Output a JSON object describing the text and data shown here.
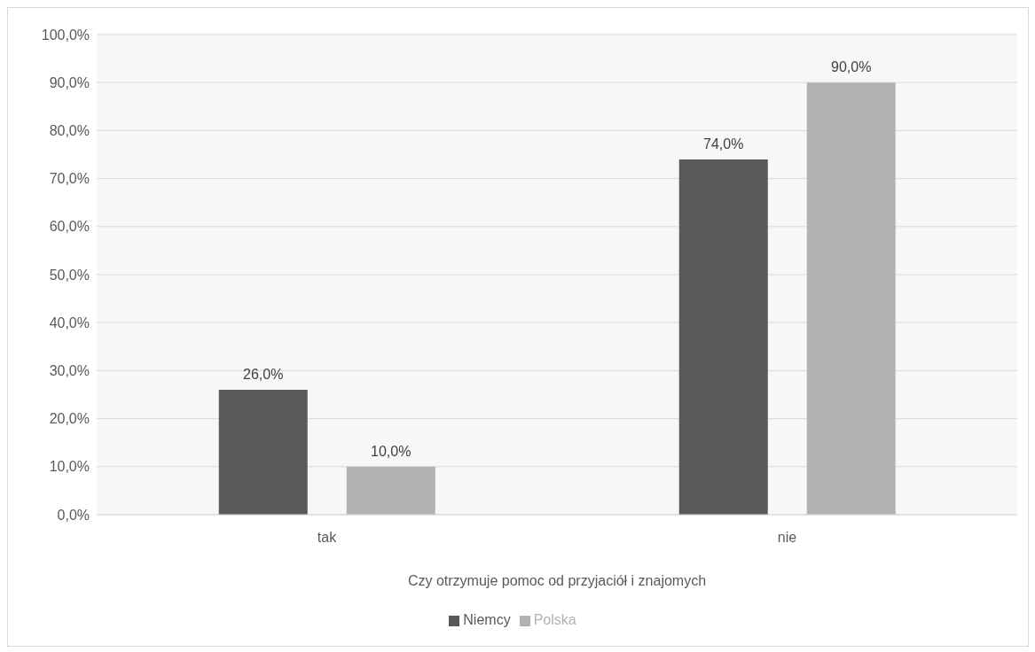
{
  "chart_data": {
    "type": "bar",
    "xlabel": "Czy otrzymuje pomoc od przyjaciół i znajomych",
    "categories": [
      "tak",
      "nie"
    ],
    "series": [
      {
        "name": "Niemcy",
        "color": "#595959",
        "values": [
          26,
          74
        ],
        "value_labels": [
          "26,0%",
          "74,0%"
        ]
      },
      {
        "name": "Polska",
        "color": "#b2b2b2",
        "values": [
          10,
          90
        ],
        "value_labels": [
          "10,0%",
          "90,0%"
        ]
      }
    ],
    "ylim": [
      0,
      100
    ],
    "yticks": [
      {
        "value": 0,
        "label": "0,0%"
      },
      {
        "value": 10,
        "label": "10,0%"
      },
      {
        "value": 20,
        "label": "20,0%"
      },
      {
        "value": 30,
        "label": "30,0%"
      },
      {
        "value": 40,
        "label": "40,0%"
      },
      {
        "value": 50,
        "label": "50,0%"
      },
      {
        "value": 60,
        "label": "60,0%"
      },
      {
        "value": 70,
        "label": "70,0%"
      },
      {
        "value": 80,
        "label": "80,0%"
      },
      {
        "value": 90,
        "label": "90,0%"
      },
      {
        "value": 100,
        "label": "100,0%"
      }
    ],
    "grid": "y",
    "legend": "bottom"
  }
}
